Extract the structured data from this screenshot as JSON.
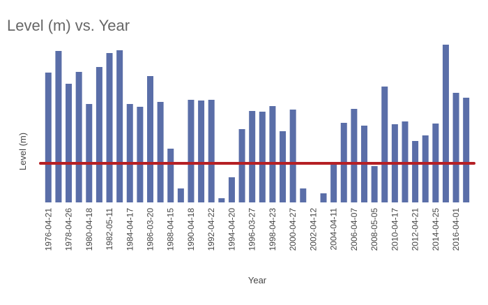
{
  "chart_data": {
    "type": "bar",
    "title": "Level (m) vs. Year",
    "x_label": "Year",
    "y_label": "Level (m)",
    "categories": [
      "1976-04-21",
      null,
      "1978-04-26",
      null,
      "1980-04-18",
      null,
      "1982-05-11",
      null,
      "1984-04-17",
      null,
      "1986-03-20",
      null,
      "1988-04-15",
      null,
      "1990-04-18",
      null,
      "1992-04-22",
      null,
      "1994-04-20",
      null,
      "1996-03-27",
      null,
      "1998-04-23",
      null,
      "2000-04-27",
      null,
      "2002-04-12",
      null,
      "2004-04-11",
      null,
      "2006-04-07",
      null,
      "2008-05-05",
      null,
      "2010-04-17",
      null,
      "2012-04-21",
      null,
      "2014-04-25",
      null,
      "2016-04-01",
      null
    ],
    "values": [
      186,
      217,
      170,
      187,
      141,
      194,
      214,
      218,
      141,
      137,
      181,
      144,
      77,
      20,
      147,
      146,
      147,
      6,
      36,
      105,
      131,
      130,
      138,
      102,
      133,
      20,
      0,
      13,
      56,
      114,
      134,
      110,
      52,
      166,
      112,
      116,
      88,
      96,
      113,
      226,
      157,
      150
    ],
    "color": "#5a6ea8",
    "reference_line": 56,
    "reference_color": "#b52025",
    "ylim": [
      0,
      230
    ]
  }
}
